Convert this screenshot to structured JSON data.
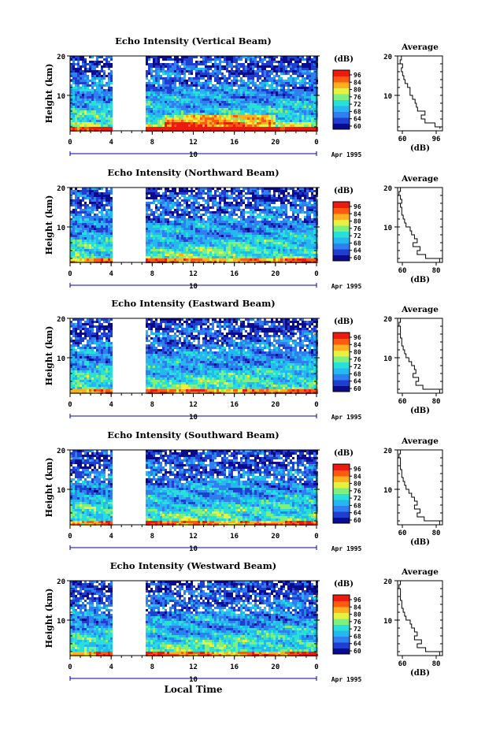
{
  "figure": {
    "xaxis_label": "Local Time",
    "month_label": "Apr 1995",
    "day_label": "10",
    "height_label": "Height (km)",
    "unit_label": "(dB)",
    "average_title": "Average",
    "x_ticks": [
      "0",
      "4",
      "8",
      "12",
      "16",
      "20",
      "0"
    ],
    "y_ticks": [
      "20",
      "10"
    ],
    "colorbar_ticks": [
      "96",
      "84",
      "80",
      "76",
      "72",
      "68",
      "64",
      "60"
    ],
    "data_gap_hours": [
      4.0,
      7.2
    ]
  },
  "colors": {
    "scale": [
      "#0a0a8c",
      "#1f3fd0",
      "#2f7ff0",
      "#25b8f0",
      "#28e0d8",
      "#7fef80",
      "#e8f040",
      "#ffb020",
      "#ff5a10",
      "#ee1a10"
    ]
  },
  "panels": [
    {
      "title": "Echo Intensity (Vertical Beam)",
      "avg_ticks": [
        "60",
        "96"
      ],
      "xlim": [
        60,
        96
      ],
      "profile": {
        "height": [
          1.5,
          2,
          3,
          4,
          5,
          6,
          7,
          8,
          9,
          10,
          11,
          12,
          13,
          14,
          15,
          16,
          17,
          18,
          19,
          20
        ],
        "db": [
          94,
          90,
          82,
          79,
          82,
          76,
          75,
          74,
          72,
          70,
          70,
          68,
          66,
          65,
          64,
          63,
          64,
          62,
          63,
          61
        ]
      }
    },
    {
      "title": "Echo Intensity (Northward Beam)",
      "avg_ticks": [
        "60",
        "80"
      ],
      "xlim": [
        58,
        90
      ],
      "profile": {
        "height": [
          1,
          2,
          3,
          4,
          5,
          6,
          7,
          8,
          9,
          10,
          11,
          12,
          13,
          14,
          15,
          16,
          17,
          18,
          19,
          20
        ],
        "db": [
          88,
          78,
          72,
          74,
          69,
          72,
          70,
          68,
          67,
          64,
          63,
          62,
          61,
          61,
          60,
          61,
          60,
          59,
          60,
          59
        ]
      }
    },
    {
      "title": "Echo Intensity (Eastward Beam)",
      "avg_ticks": [
        "60",
        "80"
      ],
      "xlim": [
        58,
        90
      ],
      "profile": {
        "height": [
          1,
          2,
          3,
          4,
          5,
          6,
          7,
          8,
          9,
          10,
          11,
          12,
          13,
          14,
          15,
          16,
          17,
          18,
          19,
          20
        ],
        "db": [
          88,
          76,
          71,
          73,
          69,
          71,
          70,
          68,
          66,
          64,
          63,
          62,
          61,
          61,
          60,
          60,
          60,
          59,
          60,
          59
        ]
      }
    },
    {
      "title": "Echo Intensity (Southward Beam)",
      "avg_ticks": [
        "60",
        "80"
      ],
      "xlim": [
        58,
        90
      ],
      "profile": {
        "height": [
          1,
          2,
          3,
          4,
          5,
          6,
          7,
          8,
          9,
          10,
          11,
          12,
          13,
          14,
          15,
          16,
          17,
          18,
          19,
          20
        ],
        "db": [
          88,
          77,
          72,
          74,
          70,
          72,
          70,
          68,
          66,
          64,
          63,
          62,
          61,
          61,
          60,
          60,
          60,
          59,
          60,
          59
        ]
      }
    },
    {
      "title": "Echo Intensity (Westward Beam)",
      "avg_ticks": [
        "60",
        "80"
      ],
      "xlim": [
        58,
        90
      ],
      "profile": {
        "height": [
          1,
          2,
          3,
          4,
          5,
          6,
          7,
          8,
          9,
          10,
          11,
          12,
          13,
          14,
          15,
          16,
          17,
          18,
          19,
          20
        ],
        "db": [
          88,
          78,
          72,
          75,
          70,
          72,
          70,
          68,
          67,
          64,
          63,
          62,
          61,
          61,
          60,
          60,
          60,
          59,
          60,
          59
        ]
      }
    }
  ],
  "chart_data": [
    {
      "type": "heatmap",
      "title": "Echo Intensity (Vertical Beam)",
      "xlabel": "Local Time",
      "ylabel": "Height (km)",
      "xlim": [
        0,
        24
      ],
      "ylim": [
        1,
        20
      ],
      "colorbar_range_db": [
        60,
        96
      ],
      "average_profile": {
        "height_km": [
          1.5,
          2,
          3,
          4,
          5,
          6,
          7,
          8,
          9,
          10,
          11,
          12,
          13,
          14,
          15,
          16,
          17,
          18,
          19,
          20
        ],
        "db": [
          94,
          90,
          82,
          79,
          82,
          76,
          75,
          74,
          72,
          70,
          70,
          68,
          66,
          65,
          64,
          63,
          64,
          62,
          63,
          61
        ]
      }
    },
    {
      "type": "heatmap",
      "title": "Echo Intensity (Northward Beam)",
      "xlabel": "Local Time",
      "ylabel": "Height (km)",
      "xlim": [
        0,
        24
      ],
      "ylim": [
        1,
        20
      ],
      "colorbar_range_db": [
        60,
        96
      ],
      "average_profile": {
        "height_km": [
          1,
          2,
          3,
          4,
          5,
          6,
          7,
          8,
          9,
          10,
          11,
          12,
          13,
          14,
          15,
          16,
          17,
          18,
          19,
          20
        ],
        "db": [
          88,
          78,
          72,
          74,
          69,
          72,
          70,
          68,
          67,
          64,
          63,
          62,
          61,
          61,
          60,
          61,
          60,
          59,
          60,
          59
        ]
      }
    },
    {
      "type": "heatmap",
      "title": "Echo Intensity (Eastward Beam)",
      "xlabel": "Local Time",
      "ylabel": "Height (km)",
      "xlim": [
        0,
        24
      ],
      "ylim": [
        1,
        20
      ],
      "colorbar_range_db": [
        60,
        96
      ],
      "average_profile": {
        "height_km": [
          1,
          2,
          3,
          4,
          5,
          6,
          7,
          8,
          9,
          10,
          11,
          12,
          13,
          14,
          15,
          16,
          17,
          18,
          19,
          20
        ],
        "db": [
          88,
          76,
          71,
          73,
          69,
          71,
          70,
          68,
          66,
          64,
          63,
          62,
          61,
          61,
          60,
          60,
          60,
          59,
          60,
          59
        ]
      }
    },
    {
      "type": "heatmap",
      "title": "Echo Intensity (Southward Beam)",
      "xlabel": "Local Time",
      "ylabel": "Height (km)",
      "xlim": [
        0,
        24
      ],
      "ylim": [
        1,
        20
      ],
      "colorbar_range_db": [
        60,
        96
      ],
      "average_profile": {
        "height_km": [
          1,
          2,
          3,
          4,
          5,
          6,
          7,
          8,
          9,
          10,
          11,
          12,
          13,
          14,
          15,
          16,
          17,
          18,
          19,
          20
        ],
        "db": [
          88,
          77,
          72,
          74,
          70,
          72,
          70,
          68,
          66,
          64,
          63,
          62,
          61,
          61,
          60,
          60,
          60,
          59,
          60,
          59
        ]
      }
    },
    {
      "type": "heatmap",
      "title": "Echo Intensity (Westward Beam)",
      "xlabel": "Local Time",
      "ylabel": "Height (km)",
      "xlim": [
        0,
        24
      ],
      "ylim": [
        1,
        20
      ],
      "colorbar_range_db": [
        60,
        96
      ],
      "average_profile": {
        "height_km": [
          1,
          2,
          3,
          4,
          5,
          6,
          7,
          8,
          9,
          10,
          11,
          12,
          13,
          14,
          15,
          16,
          17,
          18,
          19,
          20
        ],
        "db": [
          88,
          78,
          72,
          75,
          70,
          72,
          70,
          68,
          67,
          64,
          63,
          62,
          61,
          61,
          60,
          60,
          60,
          59,
          60,
          59
        ]
      }
    }
  ]
}
